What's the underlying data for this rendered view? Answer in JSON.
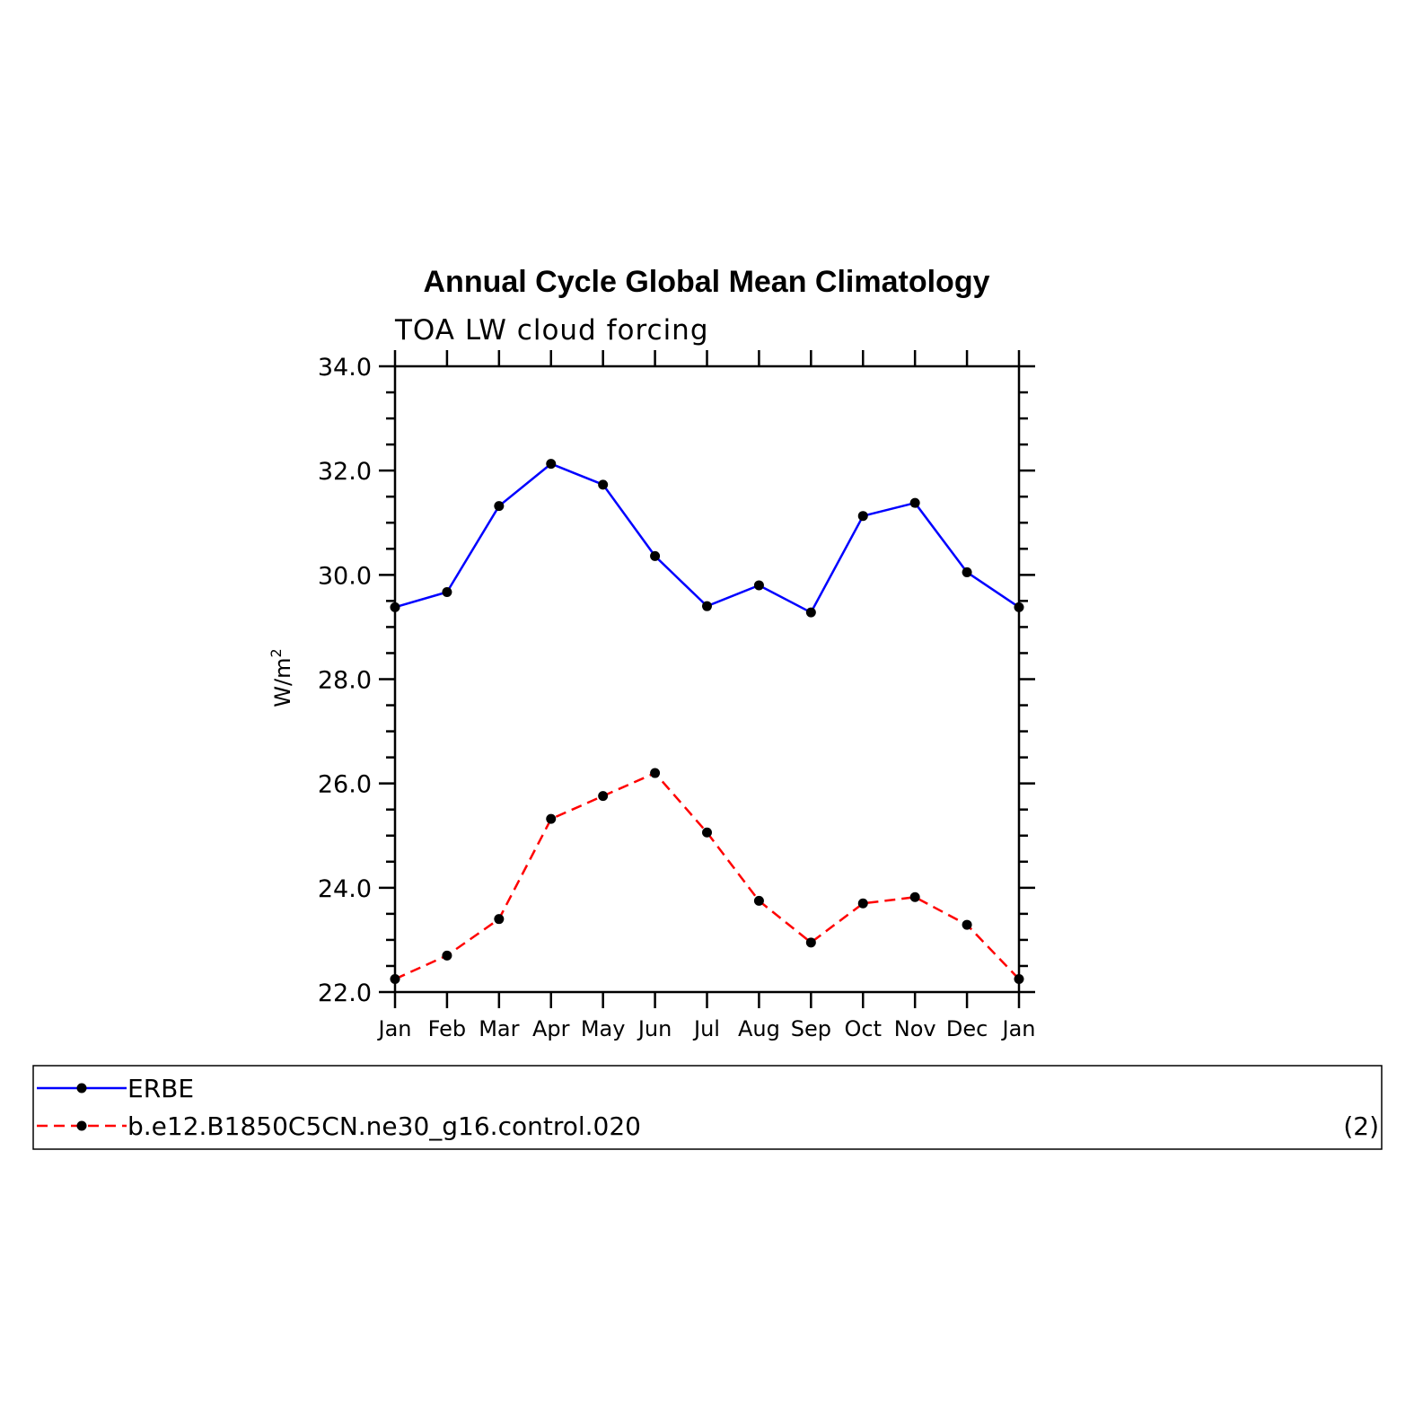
{
  "chart_data": {
    "type": "line",
    "title": "Annual Cycle Global Mean Climatology",
    "subtitle": "TOA LW cloud forcing",
    "ylabel": "W/m",
    "ylabel_sup": "2",
    "ylim": [
      22.0,
      34.0
    ],
    "yticks": [
      "22.0",
      "24.0",
      "26.0",
      "28.0",
      "30.0",
      "32.0",
      "34.0"
    ],
    "yticks_values": [
      22,
      24,
      26,
      28,
      30,
      32,
      34
    ],
    "categories": [
      "Jan",
      "Feb",
      "Mar",
      "Apr",
      "May",
      "Jun",
      "Jul",
      "Aug",
      "Sep",
      "Oct",
      "Nov",
      "Dec",
      "Jan"
    ],
    "series": [
      {
        "name": "ERBE",
        "color": "#0000ff",
        "dashed": false,
        "values": [
          29.38,
          29.67,
          31.32,
          32.13,
          31.73,
          30.36,
          29.4,
          29.8,
          29.28,
          31.13,
          31.38,
          30.05,
          29.38
        ]
      },
      {
        "name": "b.e12.B1850C5CN.ne30_g16.control.020",
        "color": "#ff0000",
        "dashed": true,
        "values": [
          22.25,
          22.7,
          23.4,
          25.32,
          25.76,
          26.2,
          25.06,
          23.75,
          22.95,
          23.7,
          23.82,
          23.29,
          22.25
        ]
      }
    ],
    "grid": false,
    "legend_placement": "bottom",
    "legend_note": "(2)"
  }
}
